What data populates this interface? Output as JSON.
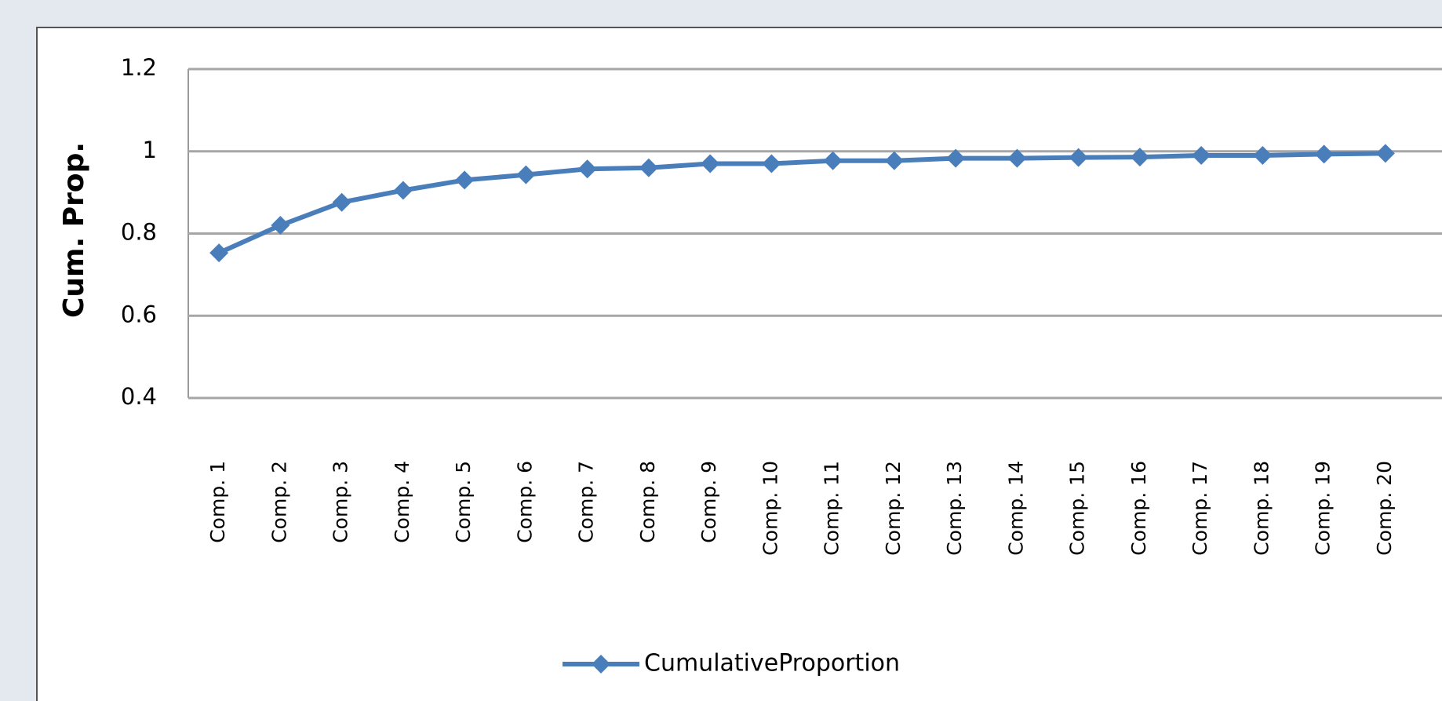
{
  "chart_data": {
    "type": "line",
    "y_label": "Cum. Prop.",
    "categories": [
      "Comp. 1",
      "Comp. 2",
      "Comp. 3",
      "Comp. 4",
      "Comp. 5",
      "Comp. 6",
      "Comp. 7",
      "Comp. 8",
      "Comp. 9",
      "Comp. 10",
      "Comp. 11",
      "Comp. 12",
      "Comp. 13",
      "Comp. 14",
      "Comp. 15",
      "Comp. 16",
      "Comp. 17",
      "Comp. 18",
      "Comp. 19",
      "Comp. 20"
    ],
    "series": [
      {
        "name": "CumulativeProportion",
        "color": "#4a7ebb",
        "values": [
          0.753,
          0.82,
          0.876,
          0.905,
          0.93,
          0.943,
          0.957,
          0.96,
          0.97,
          0.97,
          0.977,
          0.977,
          0.983,
          0.983,
          0.985,
          0.986,
          0.99,
          0.99,
          0.993,
          0.995
        ]
      }
    ],
    "ylim": [
      0.4,
      1.2
    ],
    "yticks": [
      0.4,
      0.6,
      0.8,
      1,
      1.2
    ],
    "grid": true
  }
}
